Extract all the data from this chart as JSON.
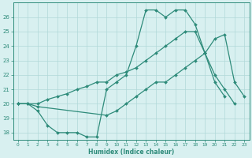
{
  "line1_x": [
    0,
    1,
    2,
    3,
    4,
    5,
    6,
    7,
    8,
    9,
    10,
    11,
    12,
    13,
    14,
    15,
    16,
    17,
    18,
    19,
    20,
    21
  ],
  "line1_y": [
    20,
    20,
    19.5,
    18.5,
    18,
    18,
    18,
    17.7,
    17.7,
    21,
    21.5,
    22,
    24,
    26.5,
    26.5,
    26,
    26.5,
    26.5,
    25.5,
    23.5,
    21.5,
    20.5
  ],
  "line2_x": [
    0,
    1,
    2,
    9,
    10,
    11,
    12,
    13,
    14,
    15,
    16,
    17,
    18,
    19,
    20,
    21,
    22,
    23
  ],
  "line2_y": [
    20,
    20,
    19.8,
    19.2,
    19.5,
    20,
    20.5,
    21,
    21.5,
    21.5,
    22,
    22.5,
    23,
    23.5,
    24.5,
    24.8,
    21.5,
    20.5
  ],
  "line3_x": [
    0,
    1,
    2,
    3,
    4,
    5,
    6,
    7,
    8,
    9,
    10,
    11,
    12,
    13,
    14,
    15,
    16,
    17,
    18,
    19,
    20,
    21,
    22,
    23
  ],
  "line3_y": [
    20,
    20,
    20,
    20.3,
    20.5,
    20.7,
    21,
    21.2,
    21.5,
    21.5,
    22,
    22.2,
    22.5,
    23,
    23.5,
    24,
    24.5,
    25,
    25,
    23.5,
    22,
    21,
    20,
    null
  ],
  "line_color": "#2e8b7a",
  "bg_color": "#d8f0f0",
  "grid_color": "#b0d8d8",
  "xlabel": "Humidex (Indice chaleur)",
  "ylim": [
    17.5,
    27
  ],
  "xlim": [
    -0.5,
    23.5
  ],
  "yticks": [
    18,
    19,
    20,
    21,
    22,
    23,
    24,
    25,
    26
  ],
  "xticks": [
    0,
    1,
    2,
    3,
    4,
    5,
    6,
    7,
    8,
    9,
    10,
    11,
    12,
    13,
    14,
    15,
    16,
    17,
    18,
    19,
    20,
    21,
    22,
    23
  ]
}
